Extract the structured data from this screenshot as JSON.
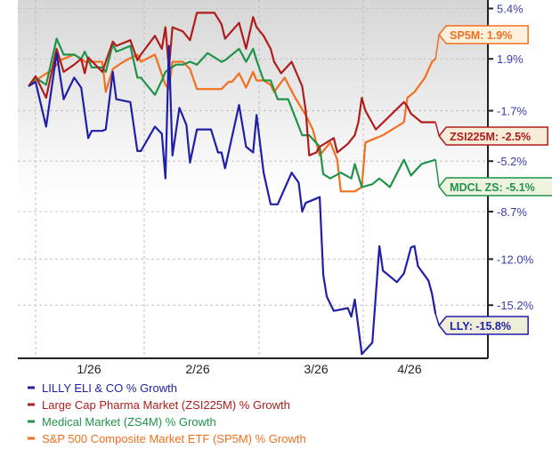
{
  "chart_data": {
    "type": "line",
    "title": "",
    "xlabel": "",
    "ylabel": "",
    "x_ticks": [
      "1/26",
      "2/26",
      "3/26",
      "4/26"
    ],
    "y_ticks": [
      {
        "value": 5.4,
        "label": "5.4%"
      },
      {
        "value": 1.9,
        "label": "1.9%"
      },
      {
        "value": -1.7,
        "label": "-1.7%"
      },
      {
        "value": -5.2,
        "label": "-5.2%"
      },
      {
        "value": -8.7,
        "label": "-8.7%"
      },
      {
        "value": -12.0,
        "label": "-12.0%"
      },
      {
        "value": -15.2,
        "label": "-15.2%"
      }
    ],
    "ylim": [
      -18.6,
      5.9
    ],
    "grid": true,
    "legend_position": "bottom-left",
    "series": [
      {
        "name": "LILLY ELI & CO % Growth",
        "color": "#1f1fa8",
        "end_label": "LLY: -15.8%",
        "points": [
          [
            "12/30",
            0
          ],
          [
            "1/1",
            0.3
          ],
          [
            "1/4",
            -2.8
          ],
          [
            "1/7",
            2.3
          ],
          [
            "1/9",
            -0.9
          ],
          [
            "1/12",
            0.6
          ],
          [
            "1/14",
            -0.1
          ],
          [
            "1/16",
            -3.6
          ],
          [
            "1/17",
            -3.1
          ],
          [
            "1/20",
            -3.1
          ],
          [
            "1/21",
            -3.0
          ],
          [
            "1/23",
            1.0
          ],
          [
            "1/24",
            -0.9
          ],
          [
            "1/28",
            -1.1
          ],
          [
            "1/30",
            -4.5
          ],
          [
            "1/31",
            -4.5
          ],
          [
            "2/4",
            -2.8
          ],
          [
            "2/6",
            -3.3
          ],
          [
            "2/7",
            -6.4
          ],
          [
            "2/8",
            2.8
          ],
          [
            "2/9",
            -4.8
          ],
          [
            "2/11",
            -1.5
          ],
          [
            "2/13",
            -2.7
          ],
          [
            "2/14",
            -5.3
          ],
          [
            "2/16",
            -3.0
          ],
          [
            "2/20",
            -3.0
          ],
          [
            "2/22",
            -4.6
          ],
          [
            "2/23",
            -4.6
          ],
          [
            "2/24",
            -5.7
          ],
          [
            "2/28",
            -1.3
          ],
          [
            "3/2",
            -4.2
          ],
          [
            "3/4",
            -4.6
          ],
          [
            "3/5",
            -2.0
          ],
          [
            "3/7",
            -6.0
          ],
          [
            "3/9",
            -8.2
          ],
          [
            "3/11",
            -8.2
          ],
          [
            "3/15",
            -6.0
          ],
          [
            "3/17",
            -6.7
          ],
          [
            "3/18",
            -8.7
          ],
          [
            "3/19",
            -8.1
          ],
          [
            "3/23",
            -7.7
          ],
          [
            "3/24",
            -13.1
          ],
          [
            "3/25",
            -14.6
          ],
          [
            "3/27",
            -15.6
          ],
          [
            "3/31",
            -15.4
          ],
          [
            "4/1",
            -16.0
          ],
          [
            "4/2",
            -14.8
          ],
          [
            "4/4",
            -18.6
          ],
          [
            "4/7",
            -17.8
          ],
          [
            "4/9",
            -11.1
          ],
          [
            "4/10",
            -12.8
          ],
          [
            "4/14",
            -13.6
          ],
          [
            "4/16",
            -13.0
          ],
          [
            "4/18",
            -11.2
          ],
          [
            "4/19",
            -11.1
          ],
          [
            "4/20",
            -12.5
          ],
          [
            "4/23",
            -13.5
          ],
          [
            "4/24",
            -14.4
          ],
          [
            "4/25",
            -15.8
          ]
        ]
      },
      {
        "name": "Large Cap Pharma Market (ZSI225M) % Growth",
        "color": "#b01c1c",
        "end_label": "ZSI225M: -2.5%",
        "points": [
          [
            "12/30",
            0
          ],
          [
            "1/1",
            0.7
          ],
          [
            "1/4",
            -0.8
          ],
          [
            "1/7",
            2.6
          ],
          [
            "1/9",
            1.0
          ],
          [
            "1/12",
            1.5
          ],
          [
            "1/14",
            1.9
          ],
          [
            "1/15",
            0.9
          ],
          [
            "1/16",
            2.0
          ],
          [
            "1/20",
            1.0
          ],
          [
            "1/23",
            3.1
          ],
          [
            "1/24",
            2.8
          ],
          [
            "1/28",
            3.2
          ],
          [
            "1/30",
            1.8
          ],
          [
            "1/31",
            2.2
          ],
          [
            "2/4",
            3.5
          ],
          [
            "2/6",
            2.6
          ],
          [
            "2/7",
            4.1
          ],
          [
            "2/8",
            1.2
          ],
          [
            "2/9",
            4.1
          ],
          [
            "2/12",
            3.8
          ],
          [
            "2/14",
            3.2
          ],
          [
            "2/16",
            5.1
          ],
          [
            "2/21",
            5.1
          ],
          [
            "2/23",
            4.3
          ],
          [
            "2/24",
            3.3
          ],
          [
            "2/28",
            4.4
          ],
          [
            "3/2",
            2.6
          ],
          [
            "3/4",
            4.8
          ],
          [
            "3/5",
            4.1
          ],
          [
            "3/7",
            3.5
          ],
          [
            "3/9",
            2.6
          ],
          [
            "3/10",
            1.7
          ],
          [
            "3/12",
            0.9
          ],
          [
            "3/15",
            1.7
          ],
          [
            "3/18",
            0.0
          ],
          [
            "3/19",
            -1.7
          ],
          [
            "3/20",
            -4.8
          ],
          [
            "3/22",
            -4.6
          ],
          [
            "3/23",
            -4.2
          ],
          [
            "3/27",
            -3.6
          ],
          [
            "3/28",
            -4.6
          ],
          [
            "3/31",
            -4.0
          ],
          [
            "4/2",
            -3.4
          ],
          [
            "4/3",
            -2.5
          ],
          [
            "4/4",
            -0.8
          ],
          [
            "4/5",
            -1.7
          ],
          [
            "4/8",
            -3.0
          ],
          [
            "4/16",
            -1.1
          ],
          [
            "4/17",
            -1.4
          ],
          [
            "4/18",
            -1.9
          ],
          [
            "4/21",
            -2.5
          ],
          [
            "4/25",
            -2.5
          ]
        ]
      },
      {
        "name": "Medical Market (ZS4M) % Growth",
        "color": "#1f9448",
        "end_label": "MDCL ZS: -5.1%",
        "points": [
          [
            "12/30",
            0
          ],
          [
            "1/1",
            0.6
          ],
          [
            "1/4",
            0.1
          ],
          [
            "1/7",
            3.3
          ],
          [
            "1/9",
            2.2
          ],
          [
            "1/12",
            2.2
          ],
          [
            "1/14",
            1.9
          ],
          [
            "1/15",
            2.4
          ],
          [
            "1/17",
            1.3
          ],
          [
            "1/20",
            1.3
          ],
          [
            "1/21",
            1.0
          ],
          [
            "1/23",
            2.9
          ],
          [
            "1/24",
            2.4
          ],
          [
            "1/28",
            2.8
          ],
          [
            "1/30",
            0.6
          ],
          [
            "1/31",
            0.6
          ],
          [
            "2/4",
            -0.6
          ],
          [
            "2/6",
            0.4
          ],
          [
            "2/7",
            1.0
          ],
          [
            "2/10",
            1.5
          ],
          [
            "2/12",
            1.5
          ],
          [
            "2/14",
            1.7
          ],
          [
            "2/16",
            1.5
          ],
          [
            "2/19",
            2.3
          ],
          [
            "2/23",
            1.7
          ],
          [
            "2/24",
            1.8
          ],
          [
            "2/28",
            2.6
          ],
          [
            "3/2",
            1.7
          ],
          [
            "3/4",
            2.6
          ],
          [
            "3/5",
            1.8
          ],
          [
            "3/7",
            0.4
          ],
          [
            "3/9",
            0.4
          ],
          [
            "3/11",
            -0.9
          ],
          [
            "3/14",
            -0.9
          ],
          [
            "3/18",
            -3.4
          ],
          [
            "3/20",
            -3.4
          ],
          [
            "3/23",
            -4.2
          ],
          [
            "3/24",
            -6.1
          ],
          [
            "3/26",
            -6.4
          ],
          [
            "3/29",
            -6.0
          ],
          [
            "4/1",
            -6.4
          ],
          [
            "4/2",
            -5.4
          ],
          [
            "4/4",
            -7.0
          ],
          [
            "4/7",
            -6.8
          ],
          [
            "4/9",
            -6.4
          ],
          [
            "4/12",
            -7.0
          ],
          [
            "4/16",
            -5.1
          ],
          [
            "4/18",
            -6.2
          ],
          [
            "4/21",
            -5.4
          ],
          [
            "4/25",
            -5.1
          ]
        ]
      },
      {
        "name": "S&P 500 Composite Market ETF (SP5M) % Growth",
        "color": "#f26f1f",
        "end_label": "SP5M: 1.9%",
        "points": [
          [
            "12/30",
            0
          ],
          [
            "1/1",
            0.4
          ],
          [
            "1/6",
            1.2
          ],
          [
            "1/8",
            1.8
          ],
          [
            "1/12",
            2.2
          ],
          [
            "1/14",
            1.9
          ],
          [
            "1/15",
            1.7
          ],
          [
            "1/20",
            1.7
          ],
          [
            "1/21",
            -0.4
          ],
          [
            "1/23",
            1.2
          ],
          [
            "1/26",
            1.7
          ],
          [
            "1/30",
            2.2
          ],
          [
            "1/31",
            1.7
          ],
          [
            "2/4",
            2.2
          ],
          [
            "2/7",
            0.1
          ],
          [
            "2/8",
            -0.2
          ],
          [
            "2/9",
            1.7
          ],
          [
            "2/12",
            1.7
          ],
          [
            "2/14",
            1.2
          ],
          [
            "2/16",
            -0.2
          ],
          [
            "2/23",
            -0.2
          ],
          [
            "2/25",
            0.3
          ],
          [
            "2/26",
            0.3
          ],
          [
            "2/28",
            0.9
          ],
          [
            "3/2",
            -0.1
          ],
          [
            "3/4",
            1.0
          ],
          [
            "3/5",
            0.4
          ],
          [
            "3/7",
            0.4
          ],
          [
            "3/9",
            0.1
          ],
          [
            "3/10",
            -0.4
          ],
          [
            "3/13",
            0.6
          ],
          [
            "3/16",
            -0.8
          ],
          [
            "3/19",
            -2.0
          ],
          [
            "3/21",
            -3.0
          ],
          [
            "3/23",
            -4.8
          ],
          [
            "3/25",
            -4.2
          ],
          [
            "3/26",
            -3.9
          ],
          [
            "3/28",
            -5.1
          ],
          [
            "3/29",
            -7.3
          ],
          [
            "4/2",
            -7.3
          ],
          [
            "4/4",
            -7.0
          ],
          [
            "4/5",
            -3.9
          ],
          [
            "4/10",
            -3.4
          ],
          [
            "4/16",
            -2.5
          ],
          [
            "4/17",
            -0.8
          ],
          [
            "4/19",
            -0.4
          ],
          [
            "4/22",
            0.6
          ],
          [
            "4/24",
            1.7
          ],
          [
            "4/25",
            1.9
          ]
        ]
      }
    ]
  }
}
